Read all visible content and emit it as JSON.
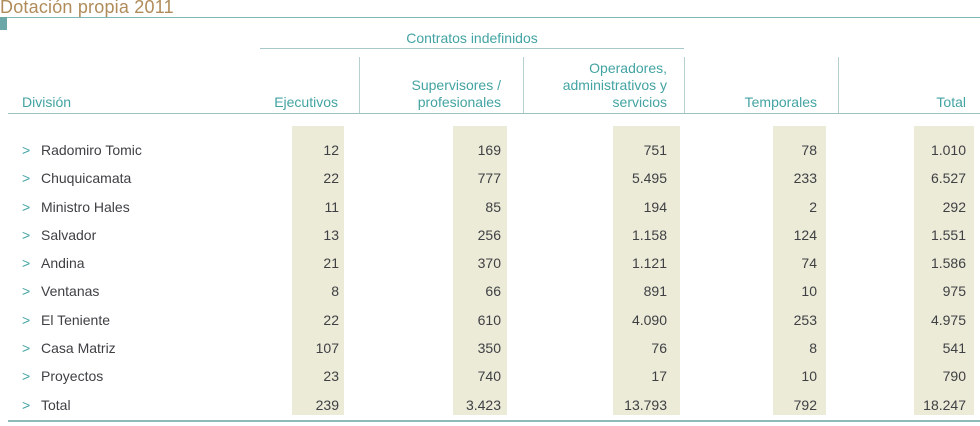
{
  "title": "Dotación propia 2011",
  "group_header": "Contratos indefinidos",
  "columns": {
    "division": "División",
    "ejecutivos": "Ejecutivos",
    "supervisores": [
      "Supervisores /",
      "profesionales"
    ],
    "operadores": [
      "Operadores,",
      "administrativos y",
      "servicios"
    ],
    "temporales": "Temporales",
    "total": "Total"
  },
  "row_marker": ">",
  "rows": [
    {
      "division": "Radomiro Tomic",
      "ejecutivos": "12",
      "supervisores": "169",
      "operadores": "751",
      "temporales": "78",
      "total": "1.010"
    },
    {
      "division": "Chuquicamata",
      "ejecutivos": "22",
      "supervisores": "777",
      "operadores": "5.495",
      "temporales": "233",
      "total": "6.527"
    },
    {
      "division": "Ministro Hales",
      "ejecutivos": "11",
      "supervisores": "85",
      "operadores": "194",
      "temporales": "2",
      "total": "292"
    },
    {
      "division": "Salvador",
      "ejecutivos": "13",
      "supervisores": "256",
      "operadores": "1.158",
      "temporales": "124",
      "total": "1.551"
    },
    {
      "division": "Andina",
      "ejecutivos": "21",
      "supervisores": "370",
      "operadores": "1.121",
      "temporales": "74",
      "total": "1.586"
    },
    {
      "division": "Ventanas",
      "ejecutivos": "8",
      "supervisores": "66",
      "operadores": "891",
      "temporales": "10",
      "total": "975"
    },
    {
      "division": "El Teniente",
      "ejecutivos": "22",
      "supervisores": "610",
      "operadores": "4.090",
      "temporales": "253",
      "total": "4.975"
    },
    {
      "division": "Casa Matriz",
      "ejecutivos": "107",
      "supervisores": "350",
      "operadores": "76",
      "temporales": "8",
      "total": "541"
    },
    {
      "division": "Proyectos",
      "ejecutivos": "23",
      "supervisores": "740",
      "operadores": "17",
      "temporales": "10",
      "total": "790"
    },
    {
      "division": "Total",
      "ejecutivos": "239",
      "supervisores": "3.423",
      "operadores": "13.793",
      "temporales": "792",
      "total": "18.247"
    }
  ]
}
